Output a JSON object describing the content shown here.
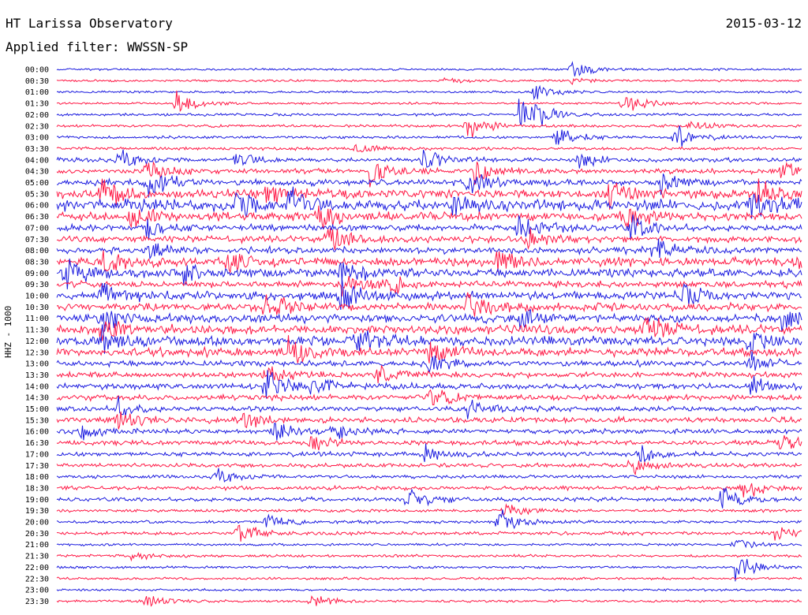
{
  "header": {
    "title": "HT Larissa Observatory",
    "date": "2015-03-12",
    "filter_label": "Applied filter: WWSSN-SP"
  },
  "chart_data": {
    "type": "line",
    "channel_label": "HHZ - 1000",
    "colors": {
      "blue": "#1a1adf",
      "red": "#ff1744"
    },
    "grid": false,
    "traces": [
      {
        "time": "00:00",
        "color": "blue",
        "activity": 0.05,
        "events": [
          {
            "t": 0.69,
            "amp": 0.9
          }
        ]
      },
      {
        "time": "00:30",
        "color": "red",
        "activity": 0.05,
        "events": [
          {
            "t": 0.52,
            "amp": 0.3
          },
          {
            "t": 0.69,
            "amp": 0.3
          }
        ]
      },
      {
        "time": "01:00",
        "color": "blue",
        "activity": 0.05,
        "events": [
          {
            "t": 0.64,
            "amp": 0.9
          }
        ]
      },
      {
        "time": "01:30",
        "color": "red",
        "activity": 0.05,
        "events": [
          {
            "t": 0.16,
            "amp": 1.2
          },
          {
            "t": 0.76,
            "amp": 1.3
          }
        ]
      },
      {
        "time": "02:00",
        "color": "blue",
        "activity": 0.07,
        "events": [
          {
            "t": 0.62,
            "amp": 1.6
          },
          {
            "t": 0.64,
            "amp": 0.9
          }
        ]
      },
      {
        "time": "02:30",
        "color": "red",
        "activity": 0.07,
        "events": [
          {
            "t": 0.55,
            "amp": 1.5
          },
          {
            "t": 0.85,
            "amp": 0.5
          }
        ]
      },
      {
        "time": "03:00",
        "color": "blue",
        "activity": 0.07,
        "events": [
          {
            "t": 0.67,
            "amp": 1.4
          },
          {
            "t": 0.83,
            "amp": 1.3
          }
        ]
      },
      {
        "time": "03:30",
        "color": "red",
        "activity": 0.08,
        "events": [
          {
            "t": 0.4,
            "amp": 0.6
          }
        ]
      },
      {
        "time": "04:00",
        "color": "blue",
        "activity": 0.12,
        "events": [
          {
            "t": 0.08,
            "amp": 1.4
          },
          {
            "t": 0.24,
            "amp": 1.0
          },
          {
            "t": 0.49,
            "amp": 1.3
          },
          {
            "t": 0.7,
            "amp": 0.8
          }
        ]
      },
      {
        "time": "04:30",
        "color": "red",
        "activity": 0.15,
        "events": [
          {
            "t": 0.12,
            "amp": 1.2
          },
          {
            "t": 0.42,
            "amp": 1.4
          },
          {
            "t": 0.56,
            "amp": 1.1
          },
          {
            "t": 0.97,
            "amp": 0.9
          }
        ]
      },
      {
        "time": "05:00",
        "color": "blue",
        "activity": 0.2,
        "events": [
          {
            "t": 0.12,
            "amp": 1.7
          },
          {
            "t": 0.55,
            "amp": 1.2
          },
          {
            "t": 0.81,
            "amp": 0.9
          }
        ]
      },
      {
        "time": "05:30",
        "color": "red",
        "activity": 0.3,
        "events": [
          {
            "t": 0.06,
            "amp": 1.4
          },
          {
            "t": 0.28,
            "amp": 0.9
          },
          {
            "t": 0.74,
            "amp": 1.4
          },
          {
            "t": 0.94,
            "amp": 1.3
          }
        ]
      },
      {
        "time": "06:00",
        "color": "blue",
        "activity": 0.4,
        "events": [
          {
            "t": 0.24,
            "amp": 1.3
          },
          {
            "t": 0.31,
            "amp": 1.8
          },
          {
            "t": 0.53,
            "amp": 1.0
          },
          {
            "t": 0.93,
            "amp": 1.1
          }
        ]
      },
      {
        "time": "06:30",
        "color": "red",
        "activity": 0.3,
        "events": [
          {
            "t": 0.1,
            "amp": 1.3
          },
          {
            "t": 0.35,
            "amp": 1.1
          },
          {
            "t": 0.76,
            "amp": 1.2
          }
        ]
      },
      {
        "time": "07:00",
        "color": "blue",
        "activity": 0.22,
        "events": [
          {
            "t": 0.12,
            "amp": 1.1
          },
          {
            "t": 0.62,
            "amp": 1.3
          },
          {
            "t": 0.77,
            "amp": 1.1
          }
        ]
      },
      {
        "time": "07:30",
        "color": "red",
        "activity": 0.22,
        "events": [
          {
            "t": 0.36,
            "amp": 1.5
          },
          {
            "t": 0.63,
            "amp": 0.9
          }
        ]
      },
      {
        "time": "08:00",
        "color": "blue",
        "activity": 0.22,
        "events": [
          {
            "t": 0.12,
            "amp": 1.2
          },
          {
            "t": 0.8,
            "amp": 1.3
          }
        ]
      },
      {
        "time": "08:30",
        "color": "red",
        "activity": 0.3,
        "events": [
          {
            "t": 0.06,
            "amp": 1.4
          },
          {
            "t": 0.23,
            "amp": 1.1
          },
          {
            "t": 0.59,
            "amp": 1.2
          },
          {
            "t": 0.99,
            "amp": 1.0
          }
        ]
      },
      {
        "time": "09:00",
        "color": "blue",
        "activity": 0.28,
        "events": [
          {
            "t": 0.01,
            "amp": 1.6
          },
          {
            "t": 0.17,
            "amp": 1.0
          },
          {
            "t": 0.38,
            "amp": 1.5
          }
        ]
      },
      {
        "time": "09:30",
        "color": "red",
        "activity": 0.22,
        "events": [
          {
            "t": 0.38,
            "amp": 1.3
          },
          {
            "t": 0.44,
            "amp": 1.1
          }
        ]
      },
      {
        "time": "10:00",
        "color": "blue",
        "activity": 0.28,
        "events": [
          {
            "t": 0.06,
            "amp": 1.2
          },
          {
            "t": 0.38,
            "amp": 1.6
          },
          {
            "t": 0.84,
            "amp": 1.0
          }
        ]
      },
      {
        "time": "10:30",
        "color": "red",
        "activity": 0.25,
        "events": [
          {
            "t": 0.28,
            "amp": 1.6
          },
          {
            "t": 0.55,
            "amp": 1.2
          }
        ]
      },
      {
        "time": "11:00",
        "color": "blue",
        "activity": 0.3,
        "events": [
          {
            "t": 0.06,
            "amp": 1.1
          },
          {
            "t": 0.62,
            "amp": 1.2
          },
          {
            "t": 0.97,
            "amp": 1.2
          }
        ]
      },
      {
        "time": "11:30",
        "color": "red",
        "activity": 0.32,
        "events": [
          {
            "t": 0.06,
            "amp": 1.3
          },
          {
            "t": 0.79,
            "amp": 1.7
          }
        ]
      },
      {
        "time": "12:00",
        "color": "blue",
        "activity": 0.35,
        "events": [
          {
            "t": 0.06,
            "amp": 1.2
          },
          {
            "t": 0.4,
            "amp": 1.4
          },
          {
            "t": 0.93,
            "amp": 1.6
          }
        ]
      },
      {
        "time": "12:30",
        "color": "red",
        "activity": 0.28,
        "events": [
          {
            "t": 0.31,
            "amp": 1.5
          },
          {
            "t": 0.5,
            "amp": 1.3
          }
        ]
      },
      {
        "time": "13:00",
        "color": "blue",
        "activity": 0.18,
        "events": [
          {
            "t": 0.5,
            "amp": 1.0
          },
          {
            "t": 0.93,
            "amp": 0.9
          }
        ]
      },
      {
        "time": "13:30",
        "color": "red",
        "activity": 0.18,
        "events": [
          {
            "t": 0.28,
            "amp": 1.2
          },
          {
            "t": 0.43,
            "amp": 1.0
          }
        ]
      },
      {
        "time": "14:00",
        "color": "blue",
        "activity": 0.2,
        "events": [
          {
            "t": 0.28,
            "amp": 1.8
          },
          {
            "t": 0.34,
            "amp": 1.0
          },
          {
            "t": 0.93,
            "amp": 0.9
          }
        ]
      },
      {
        "time": "14:30",
        "color": "red",
        "activity": 0.18,
        "events": [
          {
            "t": 0.5,
            "amp": 1.0
          }
        ]
      },
      {
        "time": "15:00",
        "color": "blue",
        "activity": 0.16,
        "events": [
          {
            "t": 0.08,
            "amp": 1.1
          },
          {
            "t": 0.55,
            "amp": 0.9
          }
        ]
      },
      {
        "time": "15:30",
        "color": "red",
        "activity": 0.2,
        "events": [
          {
            "t": 0.08,
            "amp": 1.1
          },
          {
            "t": 0.25,
            "amp": 0.8
          }
        ]
      },
      {
        "time": "16:00",
        "color": "blue",
        "activity": 0.15,
        "events": [
          {
            "t": 0.03,
            "amp": 1.0
          },
          {
            "t": 0.29,
            "amp": 1.1
          },
          {
            "t": 0.37,
            "amp": 0.9
          }
        ]
      },
      {
        "time": "16:30",
        "color": "red",
        "activity": 0.15,
        "events": [
          {
            "t": 0.34,
            "amp": 0.9
          },
          {
            "t": 0.97,
            "amp": 0.8
          }
        ]
      },
      {
        "time": "17:00",
        "color": "blue",
        "activity": 0.14,
        "events": [
          {
            "t": 0.49,
            "amp": 1.1
          },
          {
            "t": 0.78,
            "amp": 1.0
          }
        ]
      },
      {
        "time": "17:30",
        "color": "red",
        "activity": 0.12,
        "events": [
          {
            "t": 0.77,
            "amp": 1.0
          }
        ]
      },
      {
        "time": "18:00",
        "color": "blue",
        "activity": 0.1,
        "events": [
          {
            "t": 0.21,
            "amp": 1.1
          }
        ]
      },
      {
        "time": "18:30",
        "color": "red",
        "activity": 0.12,
        "events": [
          {
            "t": 0.92,
            "amp": 1.3
          }
        ]
      },
      {
        "time": "19:00",
        "color": "blue",
        "activity": 0.12,
        "events": [
          {
            "t": 0.47,
            "amp": 1.3
          },
          {
            "t": 0.89,
            "amp": 1.3
          }
        ]
      },
      {
        "time": "19:30",
        "color": "red",
        "activity": 0.08,
        "events": [
          {
            "t": 0.6,
            "amp": 0.8
          }
        ]
      },
      {
        "time": "20:00",
        "color": "blue",
        "activity": 0.08,
        "events": [
          {
            "t": 0.28,
            "amp": 0.9
          },
          {
            "t": 0.59,
            "amp": 1.5
          }
        ]
      },
      {
        "time": "20:30",
        "color": "red",
        "activity": 0.1,
        "events": [
          {
            "t": 0.24,
            "amp": 1.3
          },
          {
            "t": 0.96,
            "amp": 0.7
          }
        ]
      },
      {
        "time": "21:00",
        "color": "blue",
        "activity": 0.06,
        "events": [
          {
            "t": 0.91,
            "amp": 0.6
          }
        ]
      },
      {
        "time": "21:30",
        "color": "red",
        "activity": 0.07,
        "events": [
          {
            "t": 0.1,
            "amp": 0.5
          }
        ]
      },
      {
        "time": "22:00",
        "color": "blue",
        "activity": 0.06,
        "events": [
          {
            "t": 0.91,
            "amp": 1.3
          }
        ]
      },
      {
        "time": "22:30",
        "color": "red",
        "activity": 0.06,
        "events": []
      },
      {
        "time": "23:00",
        "color": "blue",
        "activity": 0.05,
        "events": []
      },
      {
        "time": "23:30",
        "color": "red",
        "activity": 0.06,
        "events": [
          {
            "t": 0.12,
            "amp": 0.7
          },
          {
            "t": 0.34,
            "amp": 0.8
          }
        ]
      }
    ]
  }
}
